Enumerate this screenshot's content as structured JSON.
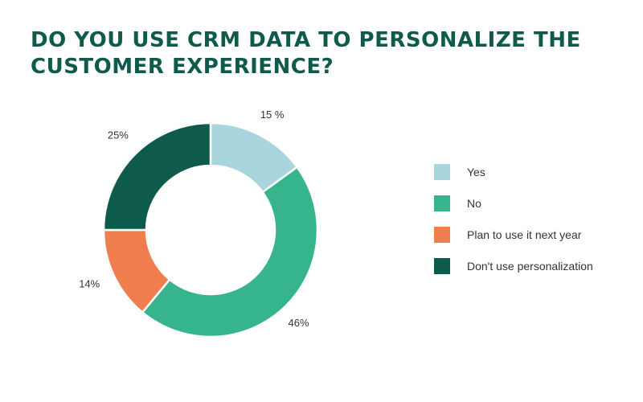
{
  "chart_data": {
    "type": "pie",
    "title": "DO YOU USE CRM DATA TO PERSONALIZE THE CUSTOMER EXPERIENCE?",
    "title_lines": [
      "DO YOU USE CRM DATA TO PERSONALIZE THE",
      "CUSTOMER EXPERIENCE?"
    ],
    "donut": true,
    "start": "top, clockwise",
    "legend_position": "right",
    "slices": [
      {
        "label": "Yes",
        "value": 15,
        "value_label": "15 %",
        "color": "#a8d5de"
      },
      {
        "label": "No",
        "value": 46,
        "value_label": "46%",
        "color": "#35b48d"
      },
      {
        "label": "Plan to use it next year",
        "value": 14,
        "value_label": "14%",
        "color": "#ef7d4e"
      },
      {
        "label": "Don't use personalization",
        "value": 25,
        "value_label": "25%",
        "color": "#0e5a4b"
      }
    ]
  }
}
